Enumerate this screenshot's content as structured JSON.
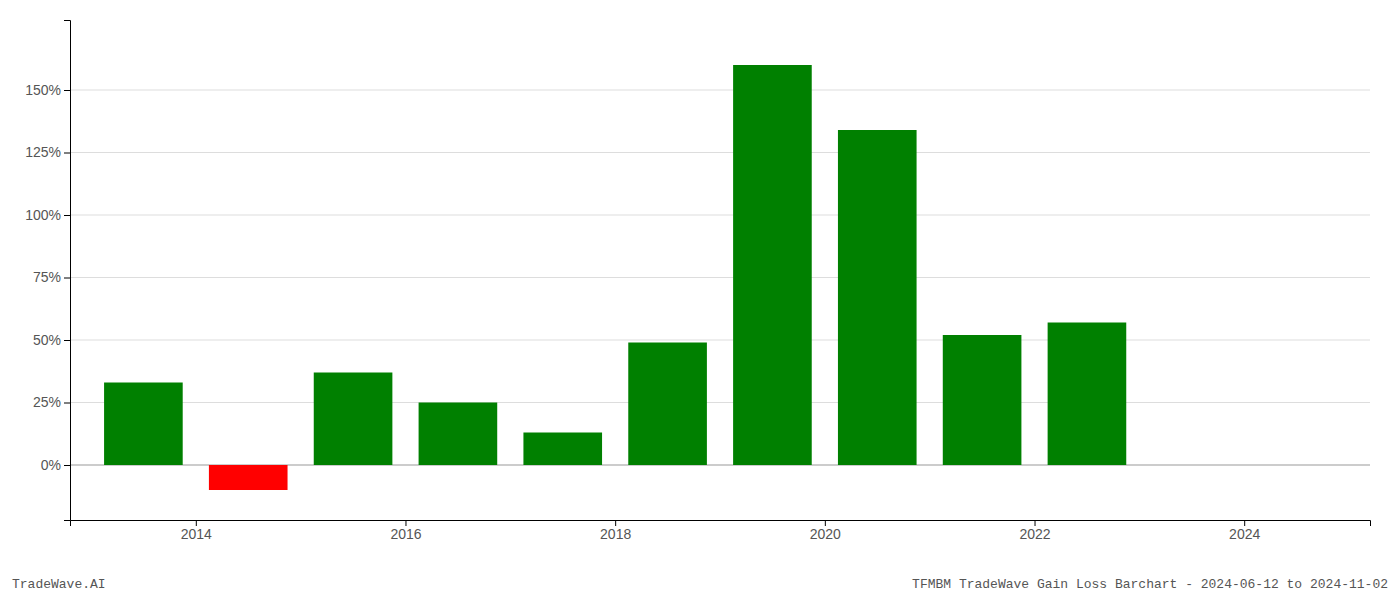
{
  "chart_data": {
    "type": "bar",
    "x": [
      2013.5,
      2014.5,
      2015.5,
      2016.5,
      2017.5,
      2018.5,
      2019.5,
      2020.5,
      2021.5,
      2022.5
    ],
    "values": [
      33,
      -10,
      37,
      25,
      13,
      49,
      160,
      134,
      52,
      57
    ],
    "colors": [
      "#008000",
      "#ff0000",
      "#008000",
      "#008000",
      "#008000",
      "#008000",
      "#008000",
      "#008000",
      "#008000",
      "#008000"
    ],
    "xlim": [
      2012.8,
      2025.2
    ],
    "ylim": [
      -22,
      178
    ],
    "xticks": [
      2014,
      2016,
      2018,
      2020,
      2022,
      2024
    ],
    "yticks": [
      {
        "value": 0,
        "label": "0%"
      },
      {
        "value": 25,
        "label": "25%"
      },
      {
        "value": 50,
        "label": "50%"
      },
      {
        "value": 75,
        "label": "75%"
      },
      {
        "value": 100,
        "label": "100%"
      },
      {
        "value": 125,
        "label": "125%"
      },
      {
        "value": 150,
        "label": "150%"
      }
    ],
    "grid": true,
    "annotations": [
      "TradeWave.AI",
      "TFMBM TradeWave Gain Loss Barchart - 2024-06-12 to 2024-11-02"
    ]
  }
}
